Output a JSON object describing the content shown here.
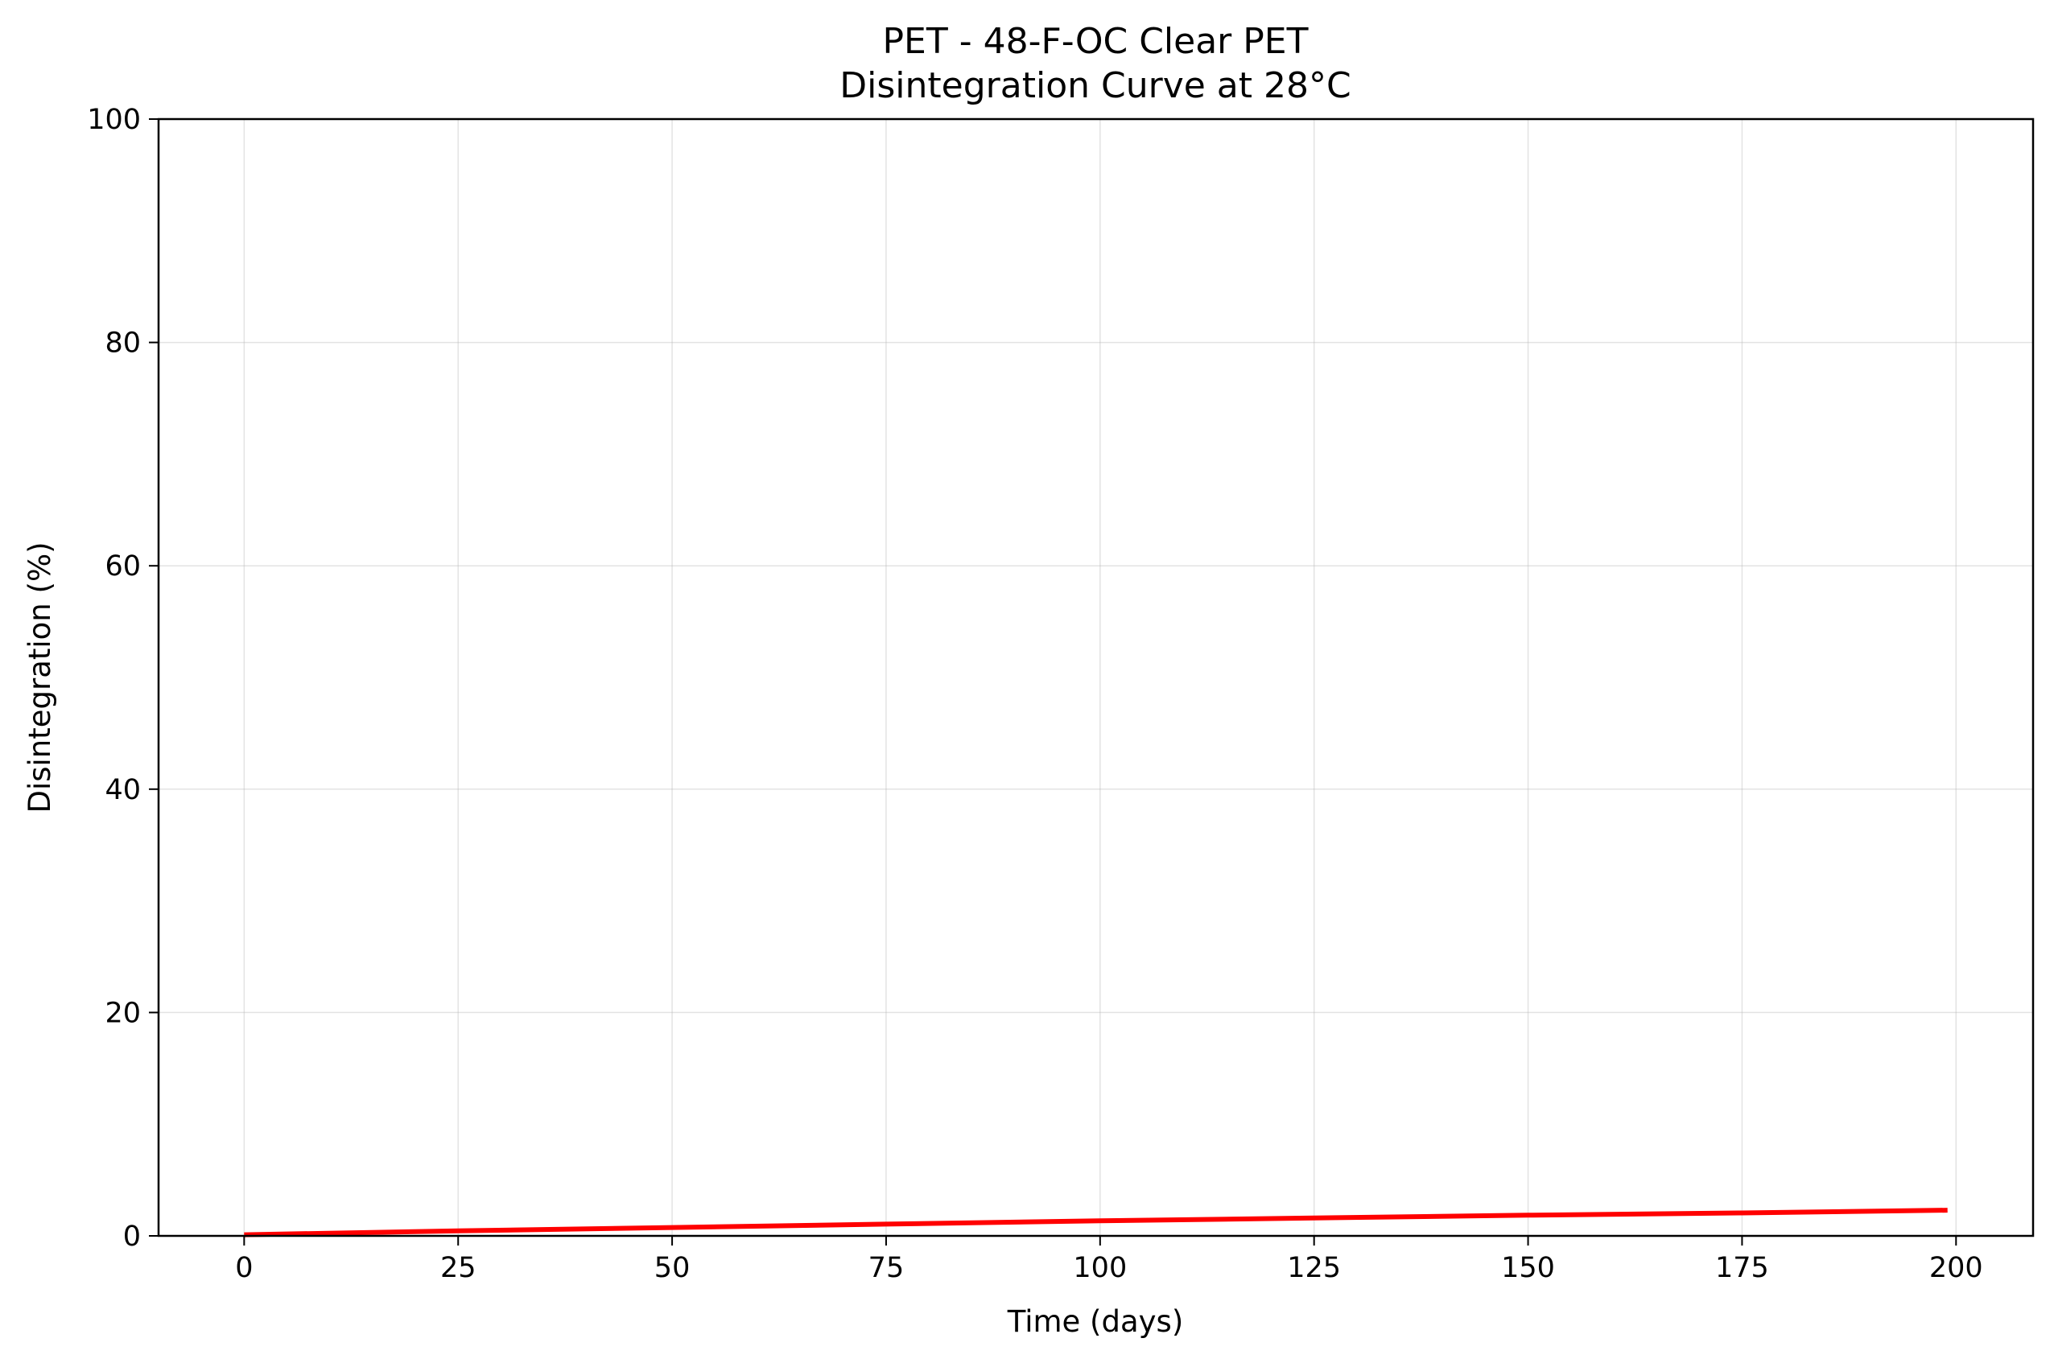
{
  "chart_data": {
    "type": "line",
    "title": "PET - 48-F-OC Clear PET",
    "subtitle": "Disintegration Curve at 28°C",
    "xlabel": "Time (days)",
    "ylabel": "Disintegration (%)",
    "xlim": [
      -10,
      209
    ],
    "ylim": [
      0,
      100
    ],
    "xticks": [
      0,
      25,
      50,
      75,
      100,
      125,
      150,
      175,
      200
    ],
    "yticks": [
      0,
      20,
      40,
      60,
      80,
      100
    ],
    "grid": true,
    "series": [
      {
        "color": "#ff0000",
        "x": [
          0,
          25,
          50,
          75,
          100,
          125,
          150,
          175,
          199
        ],
        "y": [
          0.1,
          0.45,
          0.75,
          1.05,
          1.35,
          1.6,
          1.85,
          2.05,
          2.3
        ]
      }
    ]
  }
}
